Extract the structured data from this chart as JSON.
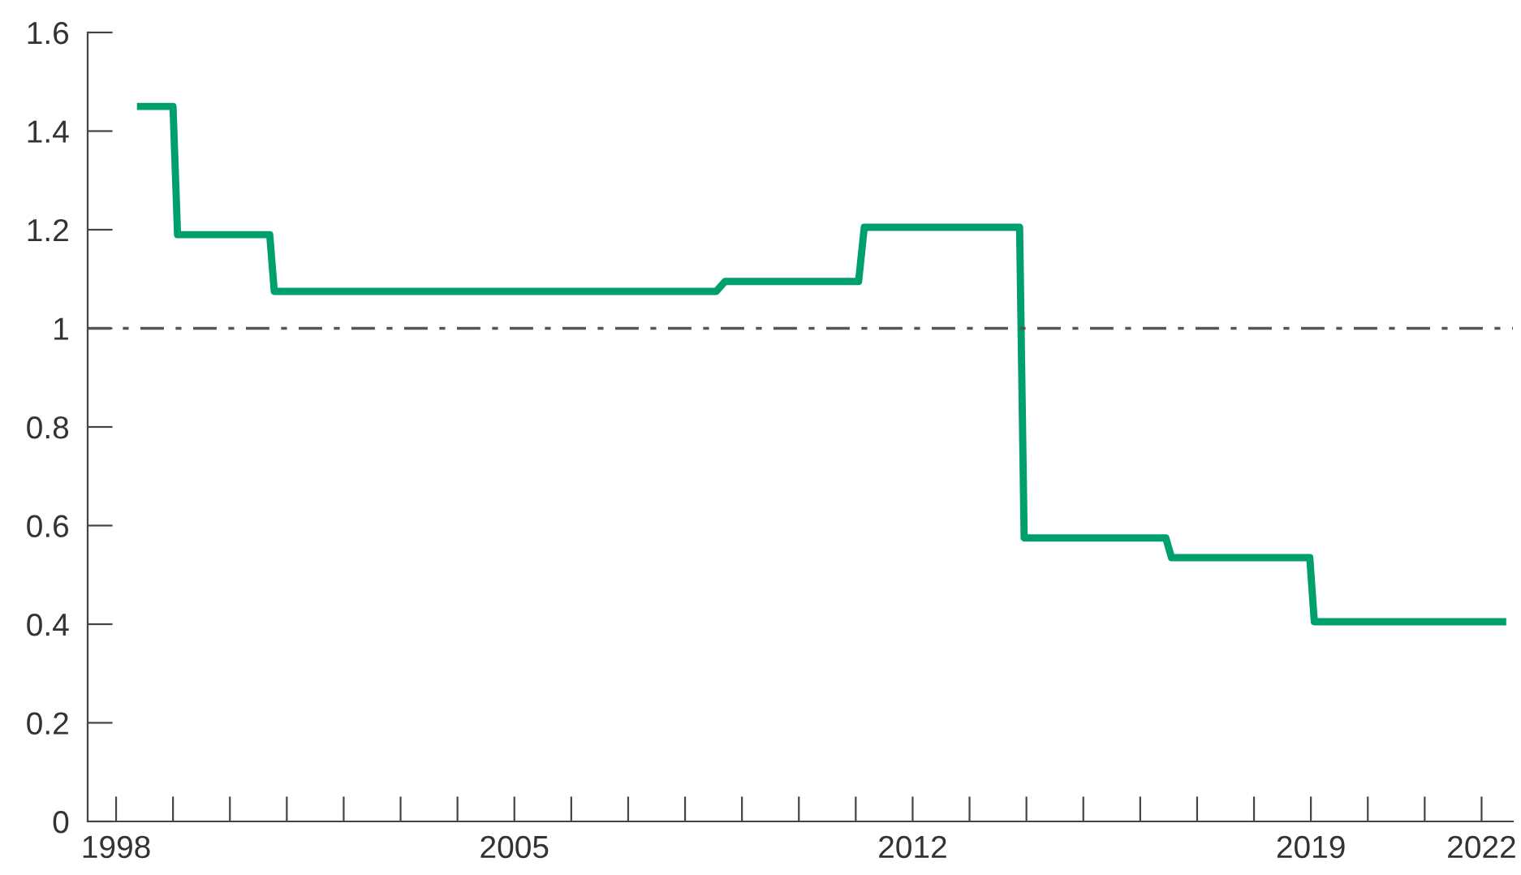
{
  "chart_data": {
    "type": "line",
    "x": [
      1998.43,
      1999.0,
      1999.08,
      2000.7,
      2000.78,
      2008.55,
      2008.7,
      2011.05,
      2011.15,
      2013.88,
      2013.96,
      2016.45,
      2016.55,
      2018.98,
      2019.06,
      2022.37
    ],
    "series": [
      {
        "color": "#00a06e",
        "values": [
          1.45,
          1.45,
          1.19,
          1.19,
          1.075,
          1.075,
          1.095,
          1.095,
          1.205,
          1.205,
          0.575,
          0.575,
          0.535,
          0.535,
          0.405,
          0.405
        ]
      }
    ],
    "xlim": [
      1997.5,
      2022.55
    ],
    "xticks": [
      1998,
      {
        "value": 1999,
        "label": null
      },
      {
        "value": 2000,
        "label": null
      },
      {
        "value": 2001,
        "label": null
      },
      {
        "value": 2002,
        "label": null
      },
      {
        "value": 2003,
        "label": null
      },
      {
        "value": 2004,
        "label": null
      },
      2005,
      {
        "value": 2006,
        "label": null
      },
      {
        "value": 2007,
        "label": null
      },
      {
        "value": 2008,
        "label": null
      },
      {
        "value": 2009,
        "label": null
      },
      {
        "value": 2010,
        "label": null
      },
      {
        "value": 2011,
        "label": null
      },
      2012,
      {
        "value": 2013,
        "label": null
      },
      {
        "value": 2014,
        "label": null
      },
      {
        "value": 2015,
        "label": null
      },
      {
        "value": 2016,
        "label": null
      },
      {
        "value": 2017,
        "label": null
      },
      {
        "value": 2018,
        "label": null
      },
      2019,
      {
        "value": 2020,
        "label": null
      },
      {
        "value": 2021,
        "label": null
      },
      2022
    ],
    "ylim": [
      0,
      1.6
    ],
    "yticks": [
      0,
      0.2,
      0.4,
      0.6,
      0.8,
      1,
      1.2,
      1.4,
      1.6
    ],
    "ref_lines": [
      {
        "axis": "y",
        "value": 1,
        "color": "#555555",
        "line_style": "dashdot"
      }
    ],
    "grid": false,
    "marker": "none",
    "line_style": "solid"
  }
}
